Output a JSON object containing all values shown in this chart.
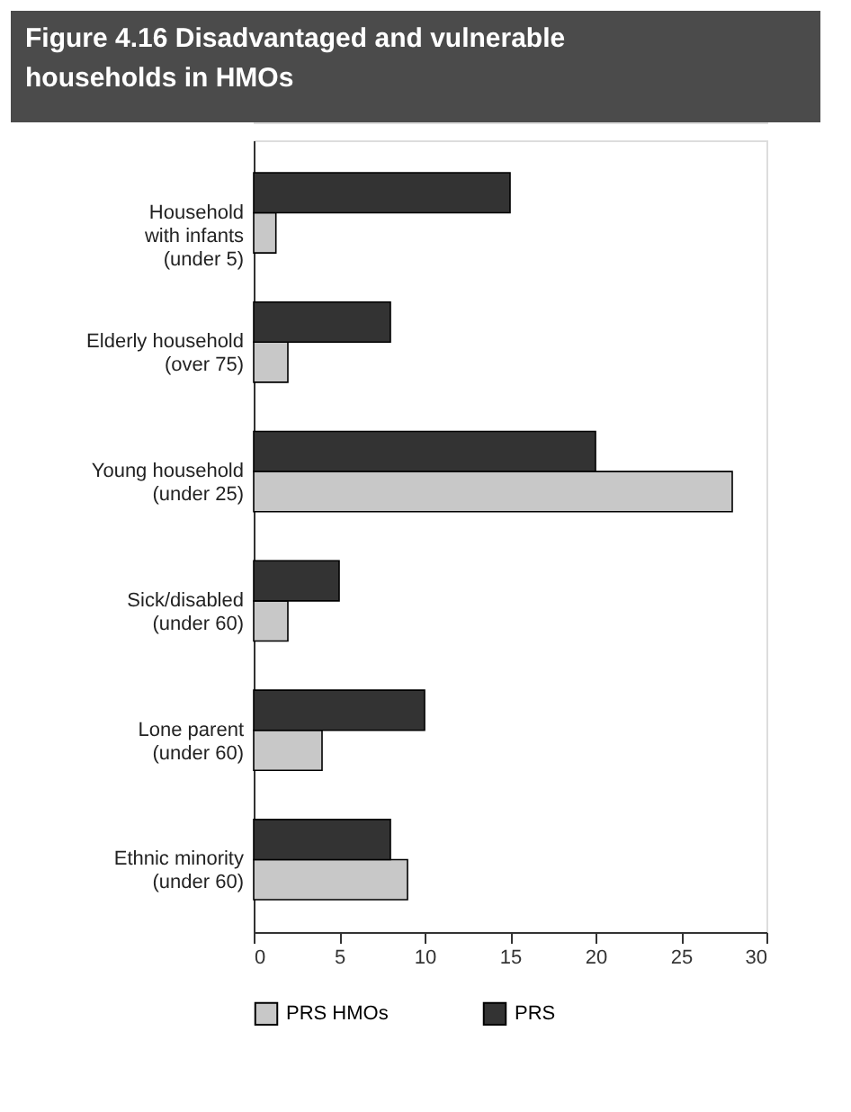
{
  "chart_data": {
    "type": "bar",
    "orientation": "horizontal",
    "title": "Figure 4.16 Disadvantaged and vulnerable households in HMOs",
    "categories": [
      "Household\nwith infants\n(under 5)",
      "Elderly household\n(over 75)",
      "Young household\n(under 25)",
      "Sick/disabled\n(under 60)",
      "Lone parent\n(under 60)",
      "Ethnic minority\n(under 60)"
    ],
    "series": [
      {
        "name": "PRS HMOs",
        "color": "#c8c8c8",
        "values": [
          1.3,
          2,
          28,
          2,
          4,
          9
        ]
      },
      {
        "name": "PRS",
        "color": "#333333",
        "values": [
          15,
          8,
          20,
          5,
          10,
          8
        ]
      }
    ],
    "xlim": [
      0,
      30
    ],
    "xticks": [
      0,
      5,
      10,
      15,
      20,
      25,
      30
    ],
    "grid": false,
    "legend": "bottom"
  }
}
